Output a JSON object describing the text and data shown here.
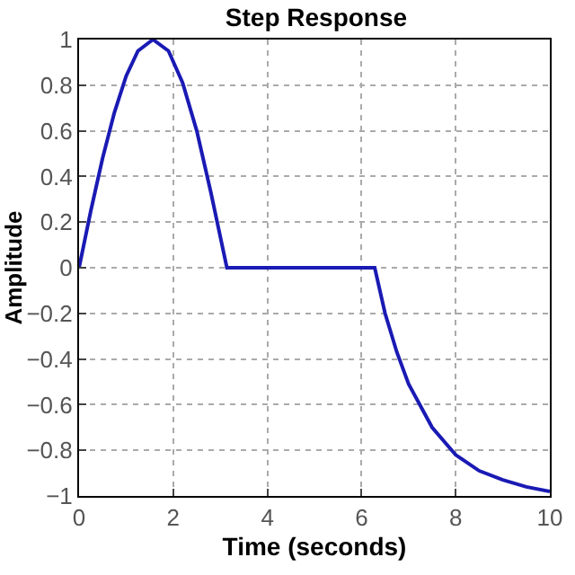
{
  "chart_data": {
    "type": "line",
    "title": "Step Response",
    "xlabel": "Time (seconds)",
    "ylabel": "Amplitude",
    "x": [
      0,
      0.25,
      0.5,
      0.75,
      1,
      1.25,
      1.57,
      1.9,
      2.2,
      2.5,
      2.8,
      3.14,
      6.28,
      6.5,
      6.75,
      7,
      7.5,
      8,
      8.5,
      9,
      9.5,
      10
    ],
    "series": [
      {
        "color": "#1a1ab4",
        "values": [
          0,
          0.25,
          0.48,
          0.68,
          0.84,
          0.95,
          1,
          0.95,
          0.81,
          0.6,
          0.33,
          0,
          0,
          -0.2,
          -0.37,
          -0.51,
          -0.7,
          -0.82,
          -0.89,
          -0.93,
          -0.96,
          -0.98
        ]
      }
    ],
    "xlim": [
      0,
      10
    ],
    "xticks": [
      0,
      2,
      4,
      6,
      8,
      10
    ],
    "ylim": [
      -1,
      1
    ],
    "yticks": [
      -1,
      -0.8,
      -0.6,
      -0.4,
      -0.2,
      0,
      0.2,
      0.4,
      0.6,
      0.8,
      1
    ],
    "grid": true,
    "line_style": "solid"
  }
}
